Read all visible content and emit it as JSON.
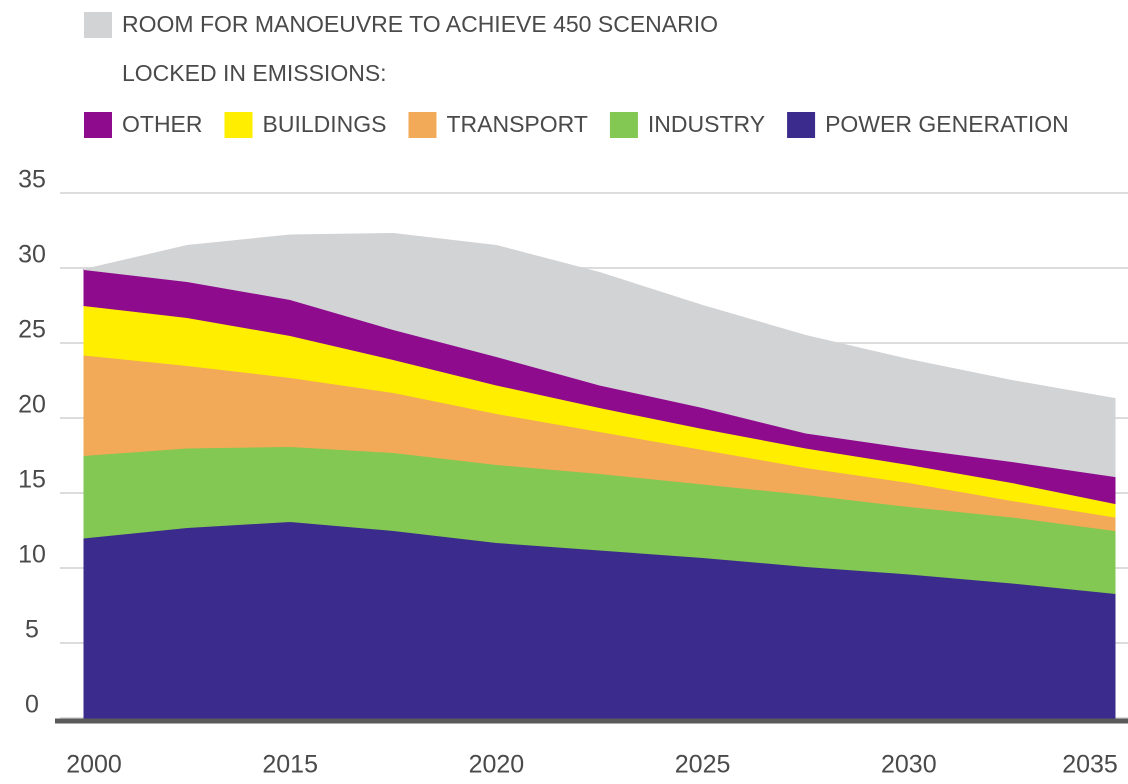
{
  "chart_data": {
    "type": "stacked_area",
    "legend_title": "LOCKED IN EMISSIONS:",
    "categories": [
      "2000",
      null,
      "2015",
      null,
      "2020",
      null,
      "2025",
      null,
      "2030",
      null,
      "2035"
    ],
    "series": [
      {
        "name": "POWER GENERATION",
        "color": "#3a2b8c",
        "values": [
          12.0,
          12.7,
          13.1,
          12.5,
          11.7,
          11.2,
          10.7,
          10.1,
          9.6,
          9.0,
          8.3
        ]
      },
      {
        "name": "INDUSTRY",
        "color": "#82c852",
        "values": [
          5.5,
          5.3,
          5.0,
          5.2,
          5.2,
          5.1,
          4.9,
          4.8,
          4.5,
          4.4,
          4.2
        ]
      },
      {
        "name": "TRANSPORT",
        "color": "#f2aa58",
        "values": [
          6.7,
          5.5,
          4.6,
          4.0,
          3.4,
          2.8,
          2.3,
          1.8,
          1.6,
          1.1,
          0.9
        ]
      },
      {
        "name": "BUILDINGS",
        "color": "#ffee00",
        "values": [
          3.3,
          3.2,
          2.8,
          2.2,
          1.9,
          1.6,
          1.4,
          1.3,
          1.2,
          1.2,
          0.9
        ]
      },
      {
        "name": "OTHER",
        "color": "#8e0b8e",
        "values": [
          2.4,
          2.4,
          2.4,
          2.0,
          1.9,
          1.5,
          1.4,
          1.0,
          1.1,
          1.4,
          1.8
        ]
      },
      {
        "name": "ROOM FOR MANOEUVRE TO ACHIEVE 450 SCENARIO",
        "color": "#d2d3d5",
        "values": [
          0,
          2.4,
          4.3,
          6.4,
          7.4,
          7.5,
          6.8,
          6.5,
          5.9,
          5.4,
          5.2
        ]
      }
    ],
    "ylim": [
      0,
      35
    ],
    "yticks": [
      0,
      5,
      10,
      15,
      20,
      25,
      30,
      35
    ],
    "grid": true
  }
}
